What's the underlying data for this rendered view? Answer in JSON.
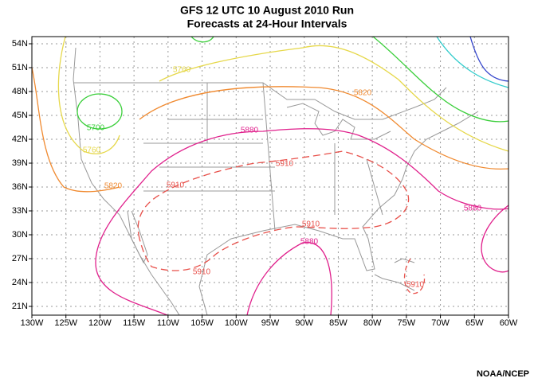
{
  "header": {
    "title": "GFS 12 UTC 10 August 2010 Run",
    "subtitle": "Forecasts at 24-Hour Intervals"
  },
  "map": {
    "latitude_labels": [
      "54N",
      "51N",
      "48N",
      "45N",
      "42N",
      "39N",
      "36N",
      "33N",
      "30N",
      "27N",
      "24N",
      "21N"
    ],
    "longitude_labels": [
      "130W",
      "125W",
      "120W",
      "115W",
      "110W",
      "105W",
      "100W",
      "95W",
      "90W",
      "85W",
      "80W",
      "75W",
      "70W",
      "65W",
      "60W"
    ],
    "contour_labels": [
      "5760",
      "5820",
      "5700",
      "5760",
      "5880",
      "5910",
      "5910",
      "5820",
      "5880",
      "5910",
      "5880",
      "5910",
      "5910"
    ]
  },
  "footer": {
    "credit": "NOAA/NCEP"
  }
}
